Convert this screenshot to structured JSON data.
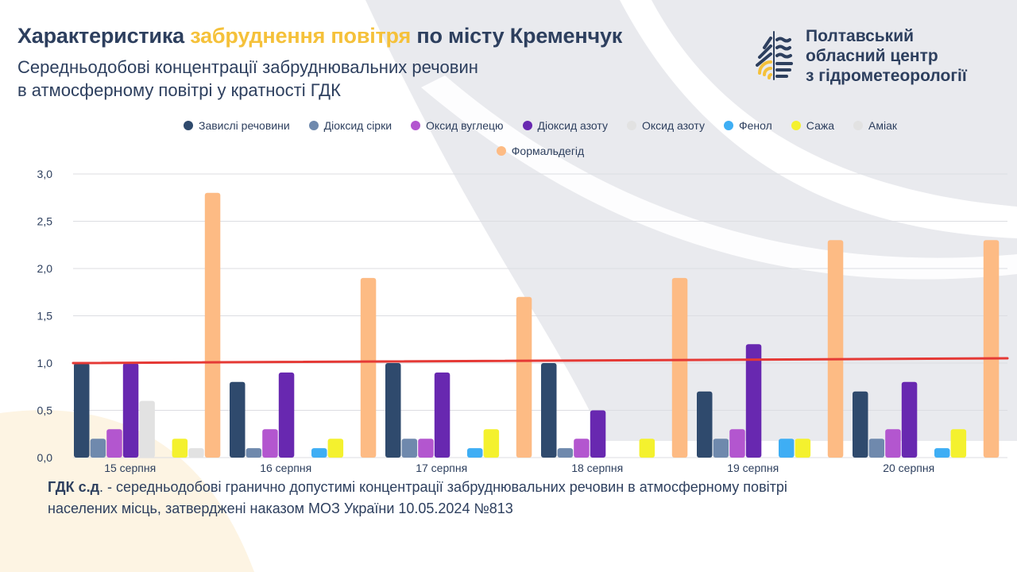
{
  "header": {
    "title_part1": "Характеристика ",
    "title_highlight": "забруднення повітря",
    "title_part2": " по місту Кременчук",
    "subtitle_line1": "Середньодобові концентрації забруднювальних речовин",
    "subtitle_line2": "в атмосферному повітрі у кратності ГДК"
  },
  "organization": {
    "line1": "Полтавський",
    "line2": "обласний центр",
    "line3": "з гідрометеорології",
    "logo_icon": "water-drop-waves-logo"
  },
  "footnote": {
    "term": "ГДК с.д",
    "text_line1": ". - середньодобові гранично допустимі концентрації забруднювальних речовин в атмосферному повітрі",
    "text_line2": "населених місць, затверджені наказом МОЗ України 10.05.2024 №813"
  },
  "chart_data": {
    "type": "bar",
    "title": "Характеристика забруднення повітря по місту Кременчук",
    "xlabel": "",
    "ylabel": "",
    "ylim": [
      0,
      3.0
    ],
    "yticks": [
      "0,0",
      "0,5",
      "1,0",
      "1,5",
      "2,0",
      "2,5",
      "3,0"
    ],
    "ytick_values": [
      0,
      0.5,
      1.0,
      1.5,
      2.0,
      2.5,
      3.0
    ],
    "grid": true,
    "legend_position": "top-center",
    "categories": [
      "15 серпня",
      "16 серпня",
      "17 серпня",
      "18 серпня",
      "19 серпня",
      "20 серпня"
    ],
    "series": [
      {
        "name": "Завислі речовини",
        "color": "#2f4a6d",
        "values": [
          1.0,
          0.8,
          1.0,
          1.0,
          0.7,
          0.7
        ]
      },
      {
        "name": "Діоксид сірки",
        "color": "#6f89ad",
        "values": [
          0.2,
          0.1,
          0.2,
          0.1,
          0.2,
          0.2
        ]
      },
      {
        "name": "Оксид вуглецю",
        "color": "#b356cf",
        "values": [
          0.3,
          0.3,
          0.2,
          0.2,
          0.3,
          0.3
        ]
      },
      {
        "name": "Діоксид азоту",
        "color": "#6828b0",
        "values": [
          1.0,
          0.9,
          0.9,
          0.5,
          1.2,
          0.8
        ]
      },
      {
        "name": "Оксид азоту",
        "color": "#e2e2e2",
        "values": [
          0.6,
          0,
          0,
          0,
          0,
          0
        ]
      },
      {
        "name": "Фенол",
        "color": "#3eaef4",
        "values": [
          0,
          0.1,
          0.1,
          0,
          0.2,
          0.1
        ]
      },
      {
        "name": "Сажа",
        "color": "#f4f12e",
        "values": [
          0.2,
          0.2,
          0.3,
          0.2,
          0.2,
          0.3
        ]
      },
      {
        "name": "Аміак",
        "color": "#e2e2e2",
        "values": [
          0.1,
          0,
          0,
          0,
          0,
          0
        ]
      },
      {
        "name": "Формальдегід",
        "color": "#fdbb84",
        "values": [
          2.8,
          1.9,
          1.7,
          1.9,
          2.3,
          2.3
        ]
      }
    ],
    "reference_line": {
      "name": "ГДК",
      "color": "#e53935",
      "start_value": 1.0,
      "end_value": 1.05
    }
  }
}
